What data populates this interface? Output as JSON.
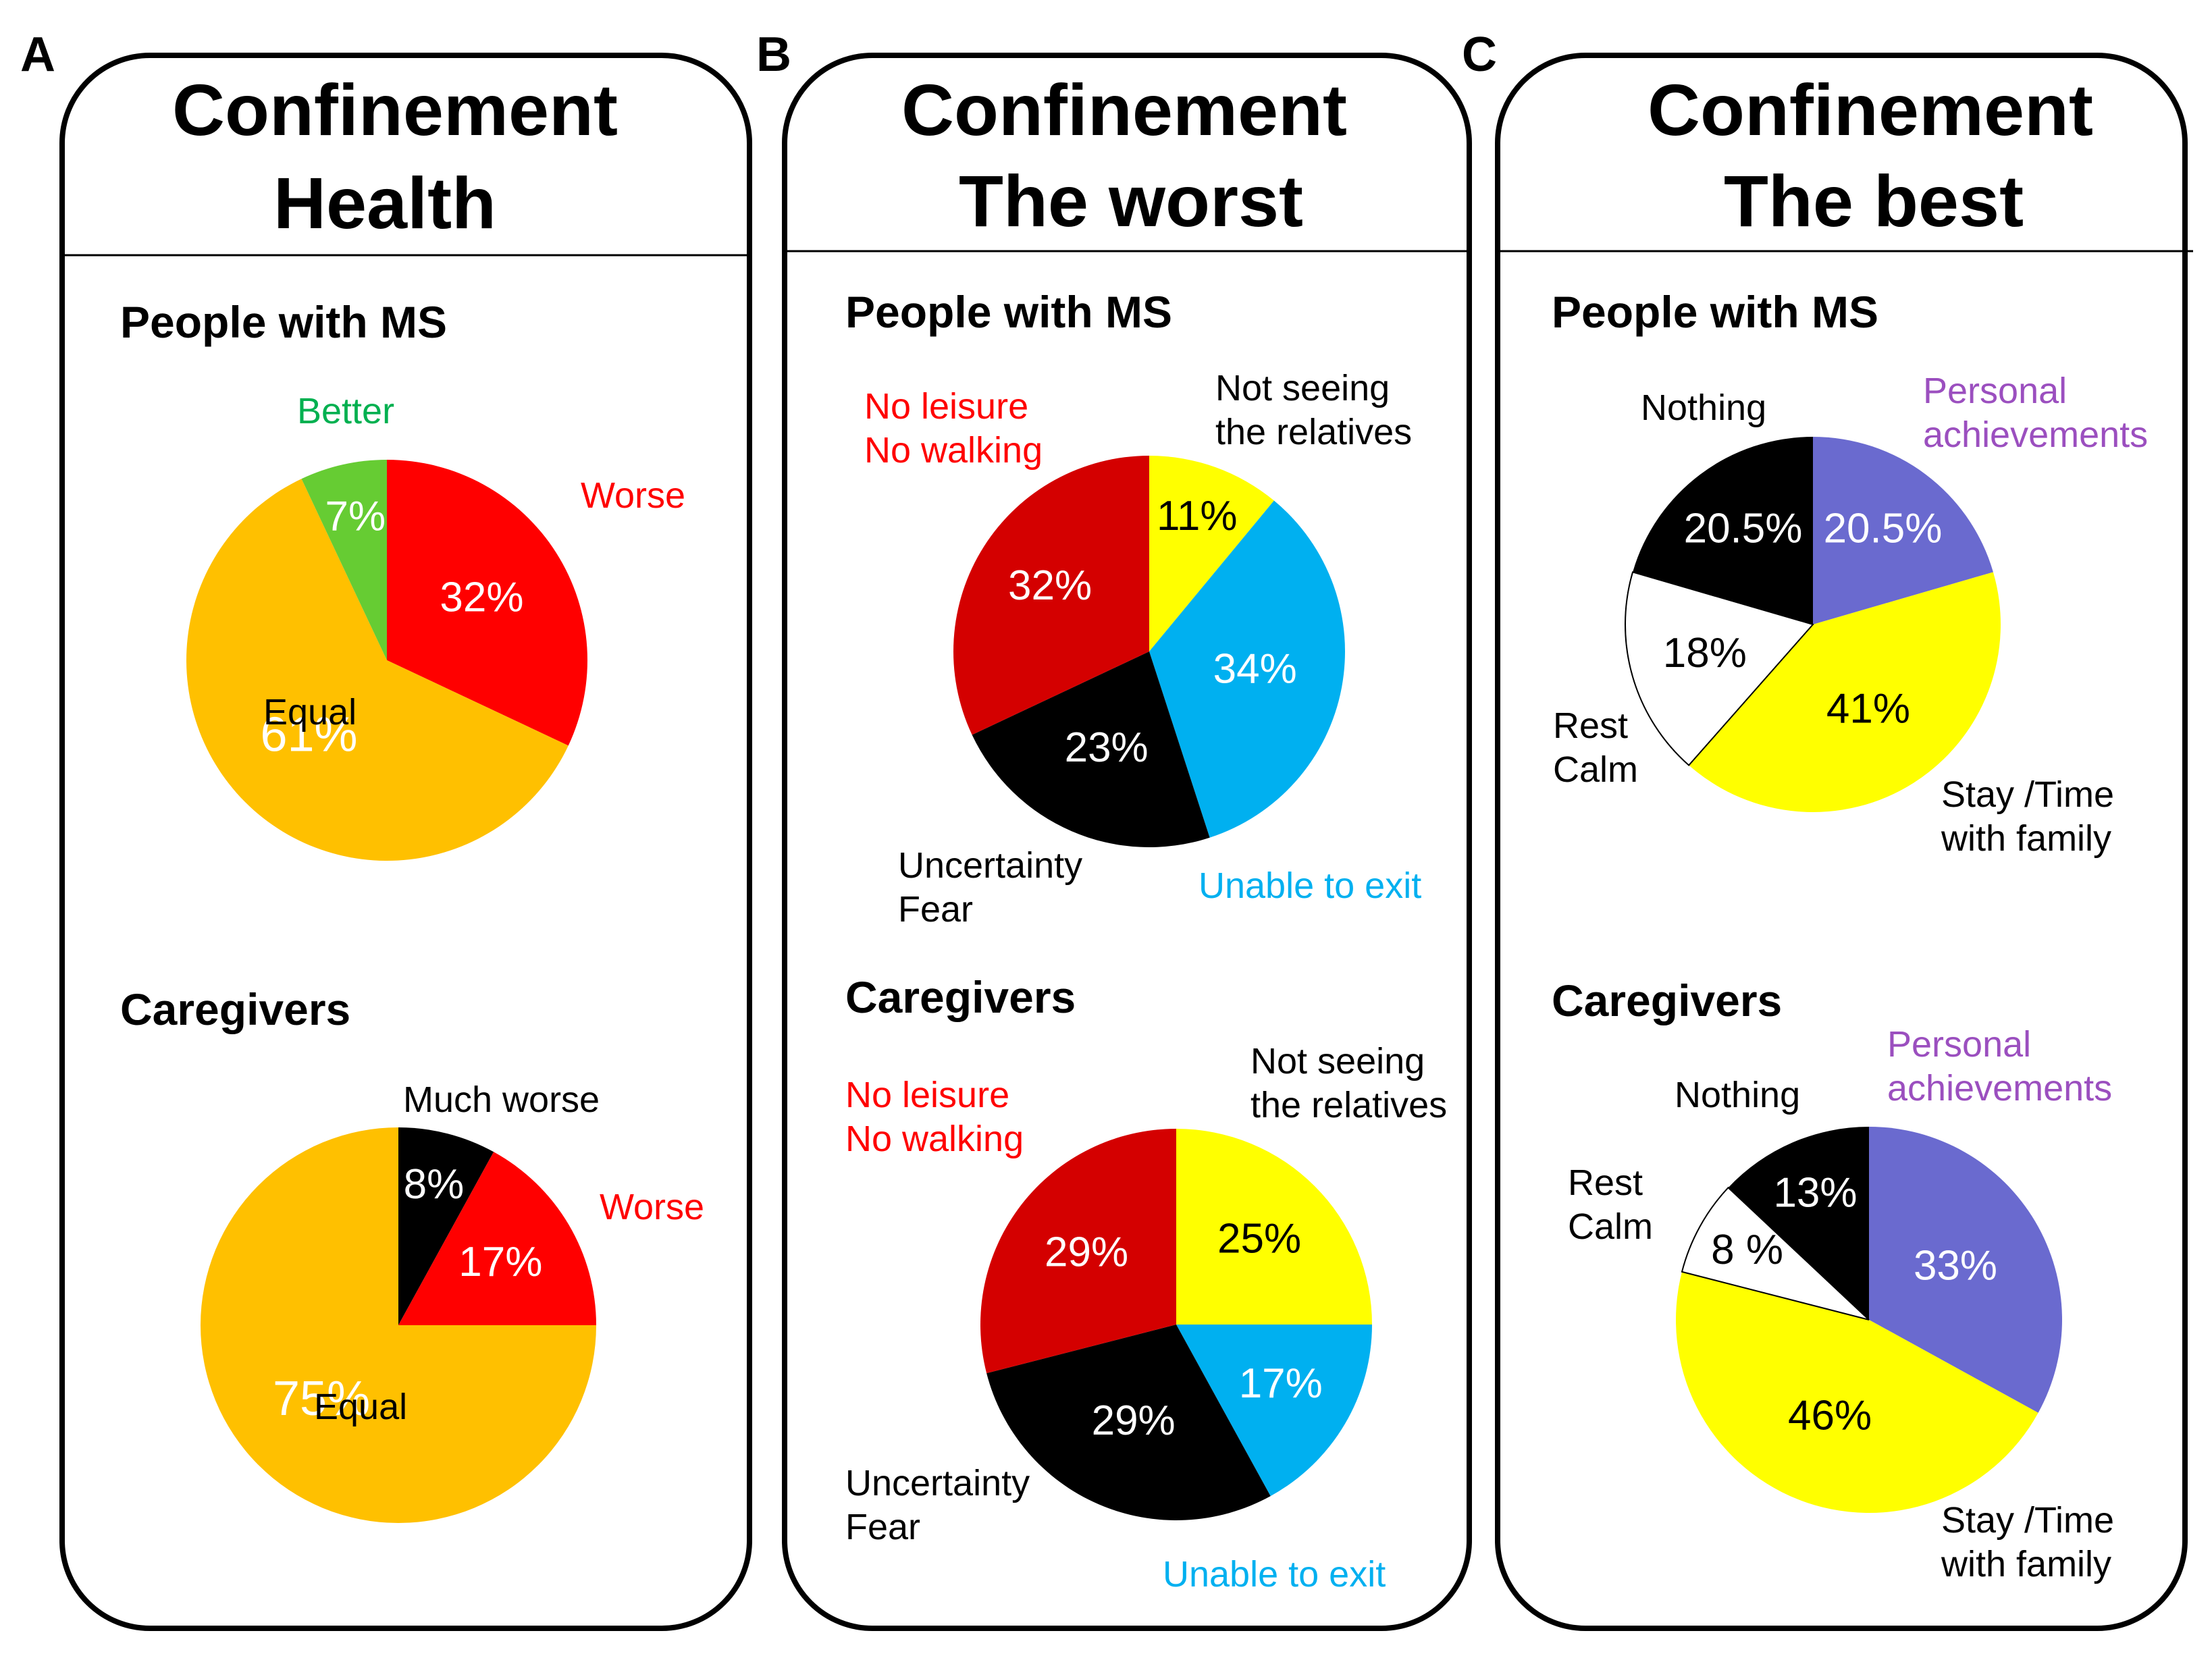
{
  "colors": {
    "red": "#ff0000",
    "darkred": "#d40000",
    "orange": "#ffc000",
    "green": "#66cc33",
    "black": "#000000",
    "yellow": "#ffff00",
    "blue": "#00b0f0",
    "purple": "#6a6acf",
    "white": "#ffffff",
    "label_green": "#00b050",
    "label_purple": "#9b4fbf"
  },
  "panels": [
    {
      "letter": "A",
      "title_line1": "Confinement",
      "title_line2": "Health"
    },
    {
      "letter": "B",
      "title_line1": "Confinement",
      "title_line2": "The worst"
    },
    {
      "letter": "C",
      "title_line1": "Confinement",
      "title_line2": "The best"
    }
  ],
  "chart_data": [
    {
      "type": "pie",
      "panel": "A",
      "group": "People with MS",
      "slices": [
        {
          "label": "Worse",
          "value": 32,
          "value_label": "32%",
          "color": "#ff0000"
        },
        {
          "label": "Equal",
          "value": 61,
          "value_label": "61%",
          "color": "#ffc000"
        },
        {
          "label": "Better",
          "value": 7,
          "value_label": "7%",
          "color": "#66cc33"
        }
      ]
    },
    {
      "type": "pie",
      "panel": "A",
      "group": "Caregivers",
      "slices": [
        {
          "label": "Much worse",
          "value": 8,
          "value_label": "8%",
          "color": "#000000"
        },
        {
          "label": "Worse",
          "value": 17,
          "value_label": "17%",
          "color": "#ff0000"
        },
        {
          "label": "Equal",
          "value": 75,
          "value_label": "75%",
          "color": "#ffc000"
        }
      ]
    },
    {
      "type": "pie",
      "panel": "B",
      "group": "People with MS",
      "slices": [
        {
          "label": "Not seeing the relatives",
          "value": 11,
          "value_label": "11%",
          "color": "#ffff00"
        },
        {
          "label": "Unable to exit",
          "value": 34,
          "value_label": "34%",
          "color": "#00b0f0"
        },
        {
          "label": "Uncertainty Fear",
          "value": 23,
          "value_label": "23%",
          "color": "#000000"
        },
        {
          "label": "No leisure No walking",
          "value": 32,
          "value_label": "32%",
          "color": "#d40000"
        }
      ]
    },
    {
      "type": "pie",
      "panel": "B",
      "group": "Caregivers",
      "slices": [
        {
          "label": "Not seeing the relatives",
          "value": 25,
          "value_label": "25%",
          "color": "#ffff00"
        },
        {
          "label": "Unable to exit",
          "value": 17,
          "value_label": "17%",
          "color": "#00b0f0"
        },
        {
          "label": "Uncertainty Fear",
          "value": 29,
          "value_label": "29%",
          "color": "#000000"
        },
        {
          "label": "No leisure No walking",
          "value": 29,
          "value_label": "29%",
          "color": "#d40000"
        }
      ]
    },
    {
      "type": "pie",
      "panel": "C",
      "group": "People with MS",
      "slices": [
        {
          "label": "Personal achievements",
          "value": 20.5,
          "value_label": "20.5%",
          "color": "#6a6acf"
        },
        {
          "label": "Stay /Time with family",
          "value": 41,
          "value_label": "41%",
          "color": "#ffff00"
        },
        {
          "label": "Rest Calm",
          "value": 18,
          "value_label": "18%",
          "color": "#ffffff"
        },
        {
          "label": "Nothing",
          "value": 20.5,
          "value_label": "20.5%",
          "color": "#000000"
        }
      ]
    },
    {
      "type": "pie",
      "panel": "C",
      "group": "Caregivers",
      "slices": [
        {
          "label": "Personal achievements",
          "value": 33,
          "value_label": "33%",
          "color": "#6a6acf"
        },
        {
          "label": "Stay /Time with family",
          "value": 46,
          "value_label": "46%",
          "color": "#ffff00"
        },
        {
          "label": "Rest Calm",
          "value": 8,
          "value_label": "8 %",
          "color": "#ffffff"
        },
        {
          "label": "Nothing",
          "value": 13,
          "value_label": "13%",
          "color": "#000000"
        }
      ]
    }
  ],
  "category_labels": {
    "a_ms_better": "Better",
    "a_ms_worse": "Worse",
    "a_ms_equal": "Equal",
    "a_cg_much_worse": "Much worse",
    "a_cg_worse": "Worse",
    "a_cg_equal": "Equal",
    "b_noleisure_1": "No leisure",
    "b_noleisure_2": "No walking",
    "b_notseeing_1": "Not seeing",
    "b_notseeing_2": "the relatives",
    "b_uncertainty_1": "Uncertainty",
    "b_uncertainty_2": "Fear",
    "b_unable": "Unable to exit",
    "c_nothing": "Nothing",
    "c_personal_1": "Personal",
    "c_personal_2": "achievements",
    "c_rest_1": "Rest",
    "c_rest_2": "Calm",
    "c_stay_1": "Stay /Time",
    "c_stay_2": "with family"
  }
}
